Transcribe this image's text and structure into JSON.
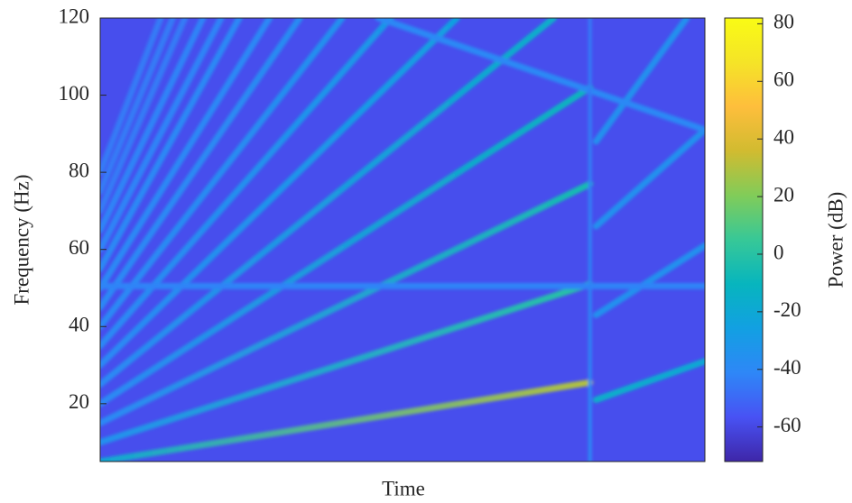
{
  "chart_data": {
    "type": "spectrogram",
    "xlabel": "Time",
    "ylabel": "Frequency (Hz)",
    "colorbar_label": "Power (dB)",
    "colormap": "parula",
    "xlim": [
      0,
      1
    ],
    "ylim": [
      5,
      120
    ],
    "yticks": [
      20,
      40,
      60,
      80,
      100,
      120
    ],
    "clim": [
      -72,
      82
    ],
    "cticks": [
      -60,
      -40,
      -20,
      0,
      20,
      40,
      60,
      80
    ],
    "background_power": -58,
    "ridges": [
      {
        "x": [
          0,
          0.81
        ],
        "y": [
          5,
          25.5
        ],
        "power": [
          -20,
          30
        ]
      },
      {
        "x": [
          0.82,
          1
        ],
        "y": [
          21,
          31
        ],
        "power": [
          -15,
          -20
        ]
      },
      {
        "x": [
          0,
          0.81
        ],
        "y": [
          10,
          51
        ],
        "power": [
          -35,
          0
        ]
      },
      {
        "x": [
          0.82,
          1
        ],
        "y": [
          43,
          61
        ],
        "power": [
          -35,
          -35
        ]
      },
      {
        "x": [
          0,
          0.81
        ],
        "y": [
          15,
          77
        ],
        "power": [
          -40,
          -5
        ]
      },
      {
        "x": [
          0.82,
          1
        ],
        "y": [
          66,
          91
        ],
        "power": [
          -35,
          -35
        ]
      },
      {
        "x": [
          0,
          0.81
        ],
        "y": [
          20,
          102
        ],
        "power": [
          -40,
          -10
        ]
      },
      {
        "x": [
          0.82,
          0.97
        ],
        "y": [
          88,
          120
        ],
        "power": [
          -35,
          -35
        ]
      },
      {
        "x": [
          0,
          0.75
        ],
        "y": [
          25,
          120
        ],
        "power": [
          -40,
          -15
        ]
      },
      {
        "x": [
          0,
          0.59
        ],
        "y": [
          30,
          120
        ],
        "power": [
          -40,
          -25
        ]
      },
      {
        "x": [
          0,
          0.48
        ],
        "y": [
          35,
          120
        ],
        "power": [
          -40,
          -30
        ]
      },
      {
        "x": [
          0,
          0.4
        ],
        "y": [
          40,
          120
        ],
        "power": [
          -40,
          -35
        ]
      },
      {
        "x": [
          0,
          0.33
        ],
        "y": [
          45,
          120
        ],
        "power": [
          -40,
          -38
        ]
      },
      {
        "x": [
          0,
          0.28
        ],
        "y": [
          50,
          120
        ],
        "power": [
          -40,
          -40
        ]
      },
      {
        "x": [
          0,
          0.23
        ],
        "y": [
          55,
          120
        ],
        "power": [
          -40,
          -40
        ]
      },
      {
        "x": [
          0,
          0.2
        ],
        "y": [
          60,
          120
        ],
        "power": [
          -42,
          -42
        ]
      },
      {
        "x": [
          0,
          0.17
        ],
        "y": [
          65,
          120
        ],
        "power": [
          -42,
          -42
        ]
      },
      {
        "x": [
          0,
          0.14
        ],
        "y": [
          70,
          120
        ],
        "power": [
          -45,
          -45
        ]
      },
      {
        "x": [
          0,
          0.12
        ],
        "y": [
          75,
          120
        ],
        "power": [
          -45,
          -45
        ]
      },
      {
        "x": [
          0,
          0.1
        ],
        "y": [
          80,
          120
        ],
        "power": [
          -45,
          -45
        ]
      },
      {
        "x": [
          0.46,
          1
        ],
        "y": [
          120,
          91
        ],
        "power": [
          -40,
          -40
        ]
      },
      {
        "x": [
          0,
          1
        ],
        "y": [
          50.5,
          50.5
        ],
        "power": [
          -42,
          -42
        ]
      },
      {
        "x": [
          0.81,
          0.81
        ],
        "y": [
          5,
          120
        ],
        "power": [
          -40,
          -45
        ]
      }
    ]
  }
}
